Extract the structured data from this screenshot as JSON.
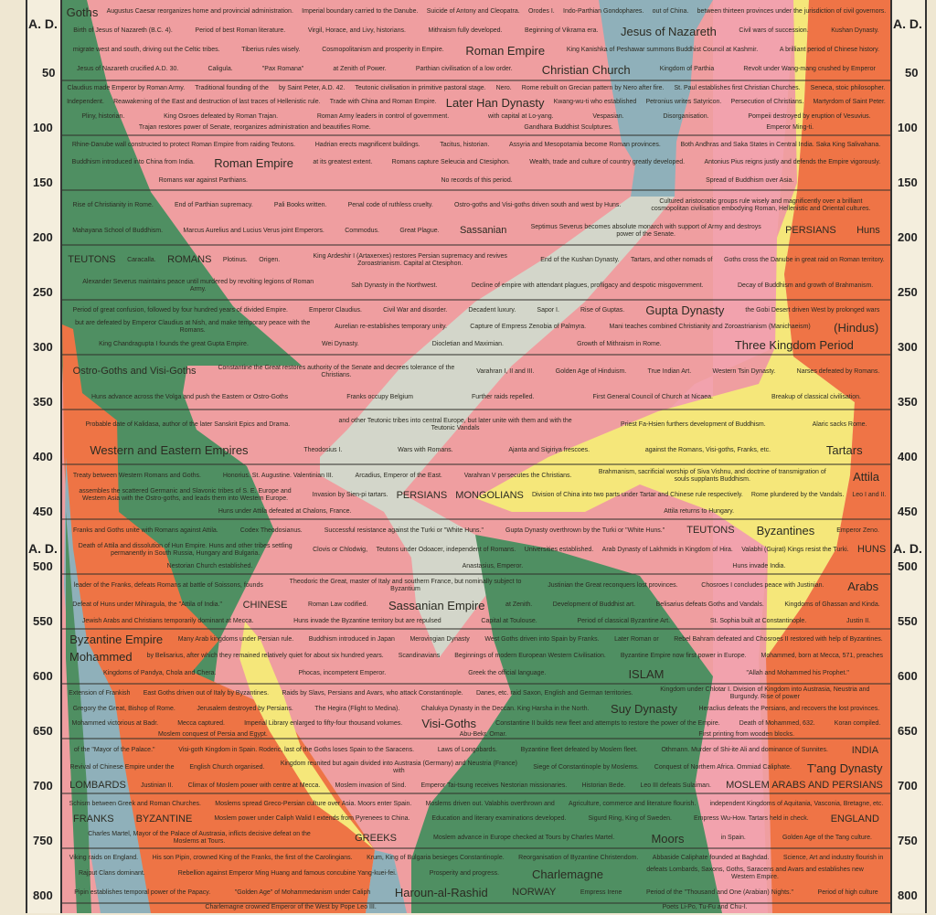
{
  "axis": {
    "era_label": "A. D.",
    "years": [
      50,
      100,
      150,
      200,
      250,
      300,
      350,
      400,
      450,
      500,
      550,
      600,
      650,
      700,
      750,
      800
    ]
  },
  "colors": {
    "background": "#efe7d2",
    "romans_pink": "#ef9ea0",
    "teutons_green": "#4f8f62",
    "franks_orange": "#ee7445",
    "parthians_blue": "#8fb0ba",
    "persians_grey": "#d3d6ca",
    "huns_yellow": "#f5e77a",
    "china_orange": "#ef7446",
    "india_pink": "#f2a2ad"
  },
  "labels": {
    "goths": "Goths",
    "goths_migrate": "migrate west and south, driving out the Celtic tribes.",
    "augustus": "Augustus Caesar reorganizes home and provincial administration.",
    "birth_jesus": "Birth of Jesus of Nazareth (B.C. 4).",
    "imperial_boundary": "Imperial boundary carried to the Danube.",
    "best_literature": "Period of best Roman literature.",
    "jesus": "Jesus of Nazareth",
    "tiberius": "Tiberius rules wisely.",
    "jesus_crucified": "Jesus of Nazareth crucified A.D. 30.",
    "caligula": "Caligula.",
    "claudius": "Claudius made Emperor by Roman Army.",
    "pax_romana": "\"Pax Romana\"",
    "traditional_founding": "Traditional founding of the",
    "christian_church": "Christian Church",
    "saint_peter": "by Saint Peter, A.D. 42.",
    "cosmopolitanism": "Cosmopolitanism and prosperity in Empire.",
    "roman_empire_zenith": "Roman Empire",
    "zenith_suffix": "at Zenith of Power.",
    "suicide_antony": "Suicide of Antony and Cleopatra.",
    "virgil": "Virgil, Horace, and Livy, historians.",
    "orodes": "Orodes I.",
    "mithraism": "Mithraism fully developed.",
    "civil_wars": "Civil wars of succession.",
    "parthian_civ": "Parthian civilisation of a low order.",
    "kingdom_parthia": "Kingdom of Parthia",
    "indo_parthian": "Indo-Parthian Gondophares.",
    "vikrama": "Beginning of Vikrama era.",
    "kushan": "Kushan Dynasty.",
    "kanishka": "King Kanishka of Peshawar summons Buddhist Council at Kashmir.",
    "out_of_china": "out of China.",
    "thirteen_provinces": "between thirteen provinces under the jurisdiction of civil governors.",
    "brilliant_period": "A brilliant period of Chinese history.",
    "wang_mang": "Revolt under Wang-mang crushed by Emperor",
    "kwang_wu": "Kwang-wu-ti who established",
    "later_han": "Later Han Dynasty",
    "loyang": "with capital at Lo-yang.",
    "ming_ti": "Emperor Ming-ti.",
    "teutonic_civ": "Teutonic civilisation in primitive pastoral stage.",
    "nero": "Nero.",
    "rome_rebuilt": "Rome rebuilt on Grecian pattern by Nero after fire.",
    "st_paul": "St. Paul establishes first Christian Churches.",
    "seneca": "Seneca, stoic philosopher.",
    "petronius": "Petronius writes Satyricon.",
    "army_leaders": "Roman Army leaders in control of government.",
    "persecution": "Persecution of Christians.",
    "martyrdom": "Martyrdom of Saint Peter.",
    "pliny": "Pliny, historian.",
    "vespasian": "Vespasian.",
    "disorganisation": "Disorganisation.",
    "pompeii": "Pompeii destroyed by eruption of Vesuvius.",
    "trajan_restores": "Trajan restores power of Senate, reorganizes administration and beautifies Rome.",
    "independent": "Independent.",
    "reawakening": "Reawakening of the East and destruction of last traces of Hellenistic rule.",
    "trade_china": "Trade with China and Roman Empire.",
    "osroes": "King Osroes defeated by Roman Trajan.",
    "gandhara": "Gandhara Buddhist Sculptures.",
    "rhine_danube": "Rhine-Danube wall constructed to protect Roman Empire from raiding Teutons.",
    "hadrian": "Hadrian erects magnificent buildings.",
    "tacitus": "Tacitus, historian.",
    "assyria": "Assyria and Mesopotamia become Roman provinces.",
    "roman_empire_greatest": "Roman Empire",
    "greatest_suffix": "at its greatest extent.",
    "antonius_pius": "Antonius Pius reigns justly and defends the Empire vigorously.",
    "rise_christianity": "Rise of Christianity in Rome.",
    "romans_war_parthians": "Romans war against Parthians.",
    "romans_capture": "Romans capture Seleucia and Ctesiphon.",
    "andhras": "Both Andhras and Saka States in Central India. Saka King Salivahana.",
    "no_records": "No records of this period.",
    "spread_buddhism": "Spread of Buddhism over Asia.",
    "buddhism_china": "Buddhism introduced into China from India.",
    "wealth_trade": "Wealth, trade and culture of country greatly developed.",
    "ostro_visi": "Ostro-goths and Visi-goths driven south and west by Huns.",
    "cultured_groups": "Cultured aristocratic groups rule wisely and magnificently over a brilliant cosmopolitan civilisation embodying Roman, Hellenistic and Oriental cultures.",
    "marcus_aurelius": "Marcus Aurelius and Lucius Verus joint Emperors.",
    "commodus": "Commodus.",
    "great_plague": "Great Plague.",
    "septimus": "Septimus Severus becomes absolute monarch with support of Army and destroys power of the Senate.",
    "end_parthian": "End of Parthian supremacy.",
    "pali_books": "Pali Books written.",
    "mahayana": "Mahayana School of Buddhism.",
    "penal_code": "Penal code of ruthless cruelty.",
    "sassanian": "Sassanian",
    "persians_top": "PERSIANS",
    "huns_side": "Huns",
    "teutons": "TEUTONS",
    "goths_danube": "Goths cross the Danube in great raid on Roman territory.",
    "caracalla": "Caracalla.",
    "romans": "ROMANS",
    "plotinus": "Plotinus.",
    "origen": "Origen.",
    "alexander_severus": "Alexander Severus maintains peace until murdered by revolting legions of Roman Army.",
    "decline_empire": "Decline of empire with attendant plagues, profligacy and despotic misgovernment.",
    "ardeshir": "King Ardeshir I (Artaxerxes) restores Persian supremacy and revives Zoroastrianism. Capital at Ctesiphon.",
    "end_kushan": "End of the Kushan Dynasty.",
    "sah_dynasty": "Sah Dynasty in the Northwest.",
    "decay_buddhism": "Decay of Buddhism and growth of Brahmanism.",
    "tartars_other": "Tartars, and other nomads of",
    "defeated_claudius": "but are defeated by Emperor Claudius at Nish, and make temporary peace with the Romans.",
    "emperor_claudius": "Emperor Claudius.",
    "civil_war": "Civil War and disorder.",
    "decadent_luxury": "Decadent luxury.",
    "aurelian": "Aurelian re-establishes temporary unity.",
    "zenobia": "Capture of Empress Zenobia of Palmyra.",
    "diocletian": "Diocletian and Maximian.",
    "mithraism_rome": "Growth of Mithraism in Rome.",
    "sapor": "Sapor I.",
    "mani": "Mani teaches combined Christianity and Zoroastrianism (Manichaeism)",
    "rise_guptas": "Rise of Guptas.",
    "gupta": "Gupta Dynasty",
    "hindus": "(Hindus)",
    "chandragupta": "King Chandragupta I founds the great Gupta Empire.",
    "gobi": "the Gobi Desert driven West by prolonged wars",
    "great_confusion": "Period of great confusion, followed by four hundred years of divided Empire.",
    "three_kingdom": "Three Kingdom Period",
    "wei_dynasty": "Wei Dynasty.",
    "ostro_visi_big": "Ostro-Goths and Visi-Goths",
    "further_raids": "Further raids repelled.",
    "constantine": "Constantine the Great restores authority of the Senate and decrees tolerance of the Christians.",
    "nicaea": "First General Council of Church at Nicaea.",
    "breakup_classical": "Breakup of classical civilisation.",
    "varahran": "Varahran I, II and III.",
    "narses": "Narses defeated by Romans.",
    "golden_age_hinduism": "Golden Age of Hinduism.",
    "true_indian_art": "True Indian Art.",
    "huns_advance": "Huns advance across the Volga and push the Eastern or Ostro-Goths",
    "western_tsin": "Western Tsin Dynasty.",
    "franks_occupy": "Franks occupy Belgium",
    "kalidasa": "Probable date of Kalidasa, author of the later Sanskrit Epics and Drama.",
    "teutonic_tribes": "and other Teutonic tribes into central Europe, but later unite with them and with the Teutonic Vandals",
    "tartars": "Tartars",
    "priest_fa_hsien": "Priest Fa-Hsien furthers development of Buddhism.",
    "alaric": "Alaric sacks Rome.",
    "western_eastern": "Western and Eastern Empires",
    "theodosius": "Theodosius I.",
    "wars_romans": "Wars with Romans.",
    "ajanta": "Ajanta and Sigiriya frescoes.",
    "against_romans": "against the Romans, Visi-goths, Franks, etc.",
    "treaty_goths": "Treaty between Western Romans and Goths.",
    "honorius": "Honorius. St. Augustine. Valentinian III.",
    "arcadius": "Arcadius, Emperor of the East.",
    "varahran_v": "Varahran V persecutes the Christians.",
    "brahmanism": "Brahmanism, sacrificial worship of Siva Vishnu, and doctrine of transmigration of souls supplants Buddhism.",
    "persians_mid": "PERSIANS",
    "attila": "Attila",
    "attila_assembles": "assembles the scattered Germanic and Slavonic tribes of S. E. Europe and Western Asia with the Ostro-goths, and leads them into Western Europe.",
    "mongolians": "MONGOLIANS",
    "invasion_tartars": "Invasion by Sien-pi tartars.",
    "rome_plundered": "Rome plundered by the Vandals.",
    "leo": "Leo I and II.",
    "huns_chalons": "Huns under Attila defeated at Chalons, France.",
    "attila_hungary": "Attila returns to Hungary.",
    "division_china": "Division of China into two parts under Tartar and Chinese rule respectively.",
    "franks_goths_unite": "Franks and Goths unite with Romans against Attila.",
    "codex": "Codex Theodosianus.",
    "successful_resistance": "Successful resistance against the Turki or \"White Huns.\"",
    "gupta_overthrown": "Gupta Dynasty overthrown by the Turki or \"White Huns.\"",
    "teutons_lower": "TEUTONS",
    "clovis": "Clovis or Chlodwig,",
    "teutons_odoacer": "Teutons under Odoacer, independent of Romans.",
    "byzantines": "Byzantines",
    "emperor_zeno": "Emperor Zeno.",
    "universities": "Universities established.",
    "nestorian": "Nestorian Church established.",
    "anastasius": "Anastasius, Emperor.",
    "death_attila": "Death of Attila and dissolution of Hun Empire. Huns and other tribes settling permanently in South Russia, Hungary and Bulgaria.",
    "huns_mid": "HUNS",
    "arab_dynasty": "Arab Dynasty of Lakhmids in Kingdom of Hira.",
    "valabhi": "Valabhi (Gujrat) Kings resist the Turki.",
    "huns_invade_india": "Huns invade India.",
    "theodoric": "Theodoric the Great, master of Italy and southern France, but nominally subject to Byzantium",
    "toulouse": "Capital at Toulouse.",
    "leader_franks": "leader of the Franks, defeats Romans at battle of Soissons, founds",
    "justinian": "Justinian the Great reconquers lost provinces.",
    "roman_law": "Roman Law codified.",
    "belisarius": "Belisarius defeats Goths and Vandals.",
    "st_sophia": "St. Sophia built at Constantinople.",
    "classical_byzantine": "Period of classical Byzantine Art.",
    "justin": "Justin II.",
    "chosroes": "Chosroes I concludes peace with Justinian.",
    "sassanian_empire": "Sassanian Empire",
    "zenith_sassanian": "at Zenith.",
    "arabs": "Arabs",
    "kingdoms_ghassan": "Kingdoms of Ghassan and Kinda.",
    "jewish_arabs": "Jewish Arabs and Christians temporarily dominant at Mecca.",
    "mihiragula": "Defeat of Huns under Mihiragula, the \"Attila of India.\"",
    "chinese": "CHINESE",
    "buddhist_art": "Development of Buddhist art.",
    "huns_byzantine": "Huns invade the Byzantine territory but are repulsed",
    "merovingian": "Merovingian Dynasty",
    "west_goths_spain": "West Goths driven into Spain by Franks.",
    "later_roman": "Later Roman or",
    "byzantine_empire": "Byzantine Empire",
    "byzantine_first": "Byzantine Empire now first power in Europe.",
    "phocas": "Phocas, incompetent Emperor.",
    "greek_official": "Greek the official language.",
    "rebel_bahram": "Rebel Bahram defeated and Chosroes II restored with help of Byzantines.",
    "many_arab": "Many Arab kingdoms under Persian rule.",
    "mohammed": "Mohammed",
    "mohammed_born": "Mohammed, born at Mecca, 571, preaches",
    "islam": "ISLAM",
    "allah": "\"Allah and Mohammed his Prophet.\"",
    "kingdoms_pandya": "Kingdoms of Pandya, Chola and Chera.",
    "belisarius_huns": "by Belisarius, after which they remained relatively quiet for about six hundred years.",
    "buddhism_japan": "Buddhism introduced in Japan",
    "beginnings_modern": "Beginnings of modern European Western Civilisation.",
    "extension_frankish": "Extension of Frankish",
    "east_goths": "East Goths driven out of Italy by Byzantines.",
    "raids_slavs": "Raids by Slavs, Persians and Avars, who attack Constantinople.",
    "jerusalem": "Jerusalem destroyed by Persians.",
    "heraclius": "Heraclius defeats the Persians, and recovers the lost provinces.",
    "constantine_ii": "Constantine II builds new fleet and attempts to restore the power of the Empire.",
    "hegira": "The Hegira (Flight to Medina).",
    "badr": "Mohammed victorious at Badr.",
    "mecca_captured": "Mecca captured.",
    "death_mohammed": "Death of Mohammed, 632.",
    "koran": "Koran compiled.",
    "moslem_conquest": "Moslem conquest of Persia and Egypt.",
    "abu_bekr": "Abu-Bekr. Omar.",
    "chalukya": "Chalukya Dynasty in the Deccan. King Harsha in the North.",
    "suy_dynasty": "Suy Dynasty",
    "imperial_library": "Imperial Library enlarged to fifty-four thousand volumes.",
    "wooden_blocks": "First printing from wooden blocks.",
    "kingdom_chlotar": "Kingdom under Chlotar I. Division of Kingdom into Austrasia, Neustria and Burgundy. Rise of power",
    "visi_goths": "Visi-Goths",
    "gregory": "Gregory the Great, Bishop of Rome.",
    "mayor_palace": "of the \"Mayor of the Palace.\"",
    "visigoth_kingdom": "Visi-goth Kingdom in Spain. Roderic, last of the Goths loses Spain to the Saracens.",
    "laws_longobards": "Laws of Longobards.",
    "byzantine_fleet": "Byzantine fleet defeated by Moslem fleet.",
    "siege_constantinople": "Siege of Constantinople by Moslems.",
    "justinian_ii": "Justinian II.",
    "leo_iii": "Leo III defeats Sulaiman.",
    "lombards": "LOMBARDS",
    "othmann": "Othmann. Murder of Shi-ite Ali and dominance of Sunnites.",
    "northern_africa": "Conquest of Northern Africa. Ommiad Caliphate.",
    "climax_moslem": "Climax of Moslem power with centre at Mecca.",
    "india": "INDIA",
    "moslem_invasion_sind": "Moslem invasion of Sind.",
    "revival_chinese": "Revival of Chinese Empire under the",
    "tang": "T'ang Dynasty",
    "tai_tsung": "Emperor Tai-tsung receives Nestorian missionaries.",
    "moslem_arabs": "MOSLEM ARABS AND PERSIANS",
    "kingdom_reunited": "Kingdom reunited but again divided into Austrasia (Germany) and Neustria (France) with",
    "schism": "Schism between Greek and Roman Churches.",
    "independent_kingdoms": "independent Kingdoms of Aquitania, Vasconia, Bretagne, etc.",
    "franks": "FRANKS",
    "charles_martel": "Charles Martel, Mayor of the Palace of Austrasia, inflicts decisive defeat on the Moslems at Tours.",
    "byzantine": "BYZANTINE",
    "greeks": "GREEKS",
    "moslems_spread": "Moslems spread Greco-Persian culture over Asia. Moors enter Spain.",
    "moslem_power_walid": "Moslem power under Caliph Walid I extends from Pyrenees to China.",
    "moslem_checked": "Moslem advance in Europe checked at Tours by Charles Martel.",
    "moors": "Moors",
    "in_spain": "in Spain.",
    "moslems_driven": "Moslems driven out. Valabhis overthrown and",
    "agriculture": "Agriculture, commerce and literature flourish.",
    "education": "Education and literary examinations developed.",
    "empress_wu": "Empress Wu-How. Tartars held in check.",
    "golden_age_tang": "Golden Age of the Tang culture.",
    "england": "ENGLAND",
    "sigurd": "Sigurd Ring, King of Sweden.",
    "pipin": "His son Pipin, crowned King of the Franks, the first of the Carolingians.",
    "pipin_papacy": "Pipin establishes temporal power of the Papacy.",
    "charlemagne": "Charlemagne",
    "charlemagne_defeats": "defeats Lombards, Saxons, Goths, Saracens and Avars and establishes new Western Empire.",
    "charlemagne_crowned": "Charlemagne crowned Emperor of the West by Pope Leo III.",
    "krum": "Krum, King of Bulgaria besieges Constantinople.",
    "reorganisation": "Reorganisation of Byzantine Christendom.",
    "empress_irene": "Empress Irene",
    "abbaside": "Abbaside Caliphate founded at Baghdad.",
    "science_art": "Science, Art and industry flourish in",
    "golden_age_moh": "\"Golden Age\" of Mohammedanism under Caliph",
    "haroun": "Haroun-al-Rashid",
    "thousand_nights": "Period of the \"Thousand and One (Arabian) Nights.\"",
    "rajput": "Rajput Clans dominant.",
    "high_culture": "Period of high culture",
    "prosperity": "Prosperity and progress.",
    "rebellion_ming": "Rebellion against Emperor Ming Huang and famous concubine Yang-kuei-fei.",
    "poets": "Poets Li-Po, Tu-Fu and Chu-I.",
    "norway": "NORWAY",
    "viking_raids": "Viking raids on England.",
    "scandinavians": "Scandinavians",
    "danes": "Danes, etc. raid Saxon, English and German territories.",
    "english_church": "English Church organised.",
    "historian_bede": "Historian Bede."
  }
}
